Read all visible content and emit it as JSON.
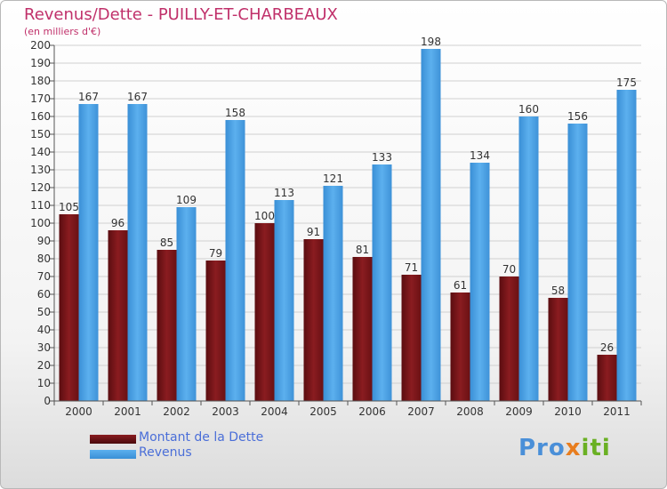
{
  "title": "Revenus/Dette - PUILLY-ET-CHARBEAUX",
  "subtitle": "(en milliers d'€)",
  "colors": {
    "title": "#c0306a",
    "dette": "#7a1518",
    "revenus": "#4aa2e6",
    "grid": "#d0d0d0",
    "legend_text": "#4a6ed8"
  },
  "chart_data": {
    "type": "bar",
    "title": "Revenus/Dette - PUILLY-ET-CHARBEAUX",
    "ylabel": "(en milliers d'€)",
    "xlabel": "",
    "categories": [
      "2000",
      "2001",
      "2002",
      "2003",
      "2004",
      "2005",
      "2006",
      "2007",
      "2008",
      "2009",
      "2010",
      "2011"
    ],
    "ylim": [
      0,
      200
    ],
    "yticks": [
      0,
      10,
      20,
      30,
      40,
      50,
      60,
      70,
      80,
      90,
      100,
      110,
      120,
      130,
      140,
      150,
      160,
      170,
      180,
      190,
      200
    ],
    "grid": true,
    "series": [
      {
        "name": "Montant de la Dette",
        "color": "#7a1518",
        "values": [
          105,
          96,
          85,
          79,
          100,
          91,
          81,
          71,
          61,
          70,
          58,
          26
        ]
      },
      {
        "name": "Revenus",
        "color": "#4aa2e6",
        "values": [
          167,
          167,
          109,
          158,
          113,
          121,
          133,
          198,
          134,
          160,
          156,
          175
        ]
      }
    ],
    "legend": "bottom-left"
  },
  "legend": {
    "dette_label": "Montant de la Dette",
    "revenus_label": "Revenus"
  },
  "logo": {
    "part1": "Pro",
    "part2": "x",
    "part3": "iti"
  }
}
